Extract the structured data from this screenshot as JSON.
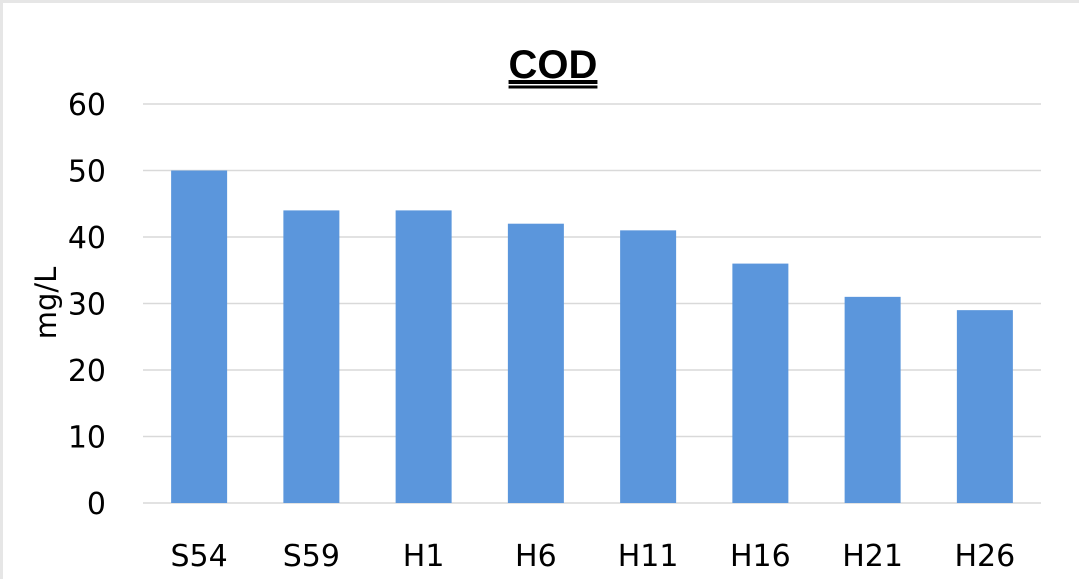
{
  "chart_data": {
    "type": "bar",
    "title": "COD",
    "xlabel": "",
    "ylabel": "mg/L",
    "ylim": [
      0,
      60
    ],
    "yticks": [
      0,
      10,
      20,
      30,
      40,
      50,
      60
    ],
    "grid": true,
    "categories": [
      "S54",
      "S59",
      "H1",
      "H6",
      "H11",
      "H16",
      "H21",
      "H26"
    ],
    "values": [
      50,
      44,
      44,
      42,
      41,
      36,
      31,
      29
    ],
    "bar_color": "#5b96dc"
  }
}
